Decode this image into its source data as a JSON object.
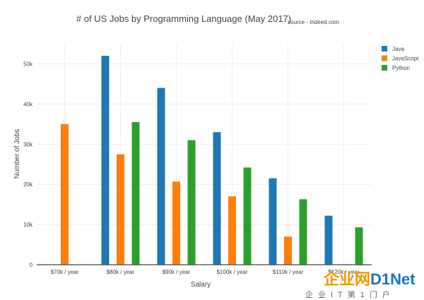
{
  "chart_data": {
    "type": "bar",
    "title": "# of US Jobs by Programming Language (May 2017)",
    "subtitle": "source - Indeed.com",
    "xlabel": "Salary",
    "ylabel": "Number of Jobs",
    "categories": [
      "$70k / year",
      "$80k / year",
      "$90k / year",
      "$100k / year",
      "$110k / year",
      "$120k / year"
    ],
    "series": [
      {
        "name": "Java",
        "color": "#1f77b4",
        "values": [
          0,
          52000,
          44000,
          33000,
          21500,
          12200
        ]
      },
      {
        "name": "JavaScript",
        "color": "#ff7f0e",
        "values": [
          35000,
          27500,
          20700,
          17000,
          7000,
          0
        ]
      },
      {
        "name": "Python",
        "color": "#2ca02c",
        "values": [
          0,
          35500,
          31000,
          24200,
          16300,
          9300
        ]
      }
    ],
    "ylim": [
      0,
      55000
    ],
    "yticks": [
      0,
      10000,
      20000,
      30000,
      40000,
      50000
    ],
    "ytick_labels": [
      "0",
      "10k",
      "20k",
      "30k",
      "40k",
      "50k"
    ],
    "grid": true,
    "legend_position": "top-right"
  },
  "watermark": {
    "logo_left": "企业网",
    "logo_right": "D1Net",
    "tagline": "企业IT第1门户",
    "color_left": "#f39800",
    "color_right": "#1a73c8"
  }
}
